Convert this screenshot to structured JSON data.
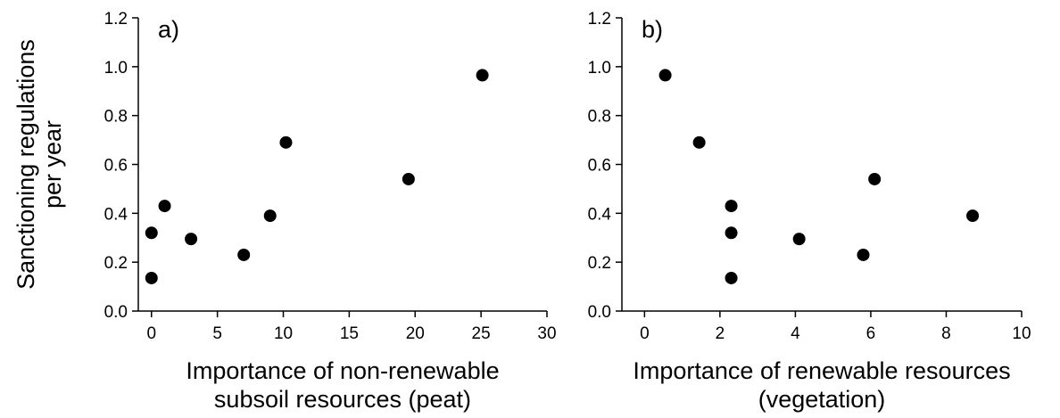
{
  "chart_data": [
    {
      "type": "scatter",
      "tag": "a)",
      "xlabel": [
        "Importance of non-renewable",
        "subsoil resources (peat)"
      ],
      "ylabel": [
        "Sanctioning regulations",
        "per year"
      ],
      "xlim": [
        -1,
        30
      ],
      "ylim": [
        0,
        1.2
      ],
      "xticks": [
        "0",
        "5",
        "10",
        "15",
        "20",
        "25",
        "30"
      ],
      "xtick_values": [
        0,
        5,
        10,
        15,
        20,
        25,
        30
      ],
      "yticks": [
        "0.0",
        "0.2",
        "0.4",
        "0.6",
        "0.8",
        "1.0",
        "1.2"
      ],
      "ytick_values": [
        0,
        0.2,
        0.4,
        0.6,
        0.8,
        1.0,
        1.2
      ],
      "grid": false,
      "points": [
        {
          "x": 0,
          "y": 0.32
        },
        {
          "x": 0,
          "y": 0.135
        },
        {
          "x": 1,
          "y": 0.43
        },
        {
          "x": 3,
          "y": 0.295
        },
        {
          "x": 7,
          "y": 0.23
        },
        {
          "x": 9,
          "y": 0.39
        },
        {
          "x": 10.2,
          "y": 0.69
        },
        {
          "x": 19.5,
          "y": 0.54
        },
        {
          "x": 25.1,
          "y": 0.965
        }
      ]
    },
    {
      "type": "scatter",
      "tag": "b)",
      "xlabel": [
        "Importance of renewable resources",
        "(vegetation)"
      ],
      "ylabel": [],
      "xlim": [
        -0.6,
        10
      ],
      "ylim": [
        0,
        1.2
      ],
      "xticks": [
        "0",
        "2",
        "4",
        "6",
        "8",
        "10"
      ],
      "xtick_values": [
        0,
        2,
        4,
        6,
        8,
        10
      ],
      "yticks": [
        "0.0",
        "0.2",
        "0.4",
        "0.6",
        "0.8",
        "1.0",
        "1.2"
      ],
      "ytick_values": [
        0,
        0.2,
        0.4,
        0.6,
        0.8,
        1.0,
        1.2
      ],
      "grid": false,
      "points": [
        {
          "x": 0.55,
          "y": 0.965
        },
        {
          "x": 1.45,
          "y": 0.69
        },
        {
          "x": 2.3,
          "y": 0.43
        },
        {
          "x": 2.3,
          "y": 0.32
        },
        {
          "x": 2.3,
          "y": 0.135
        },
        {
          "x": 4.1,
          "y": 0.295
        },
        {
          "x": 5.8,
          "y": 0.23
        },
        {
          "x": 6.1,
          "y": 0.54
        },
        {
          "x": 8.7,
          "y": 0.39
        }
      ]
    }
  ]
}
